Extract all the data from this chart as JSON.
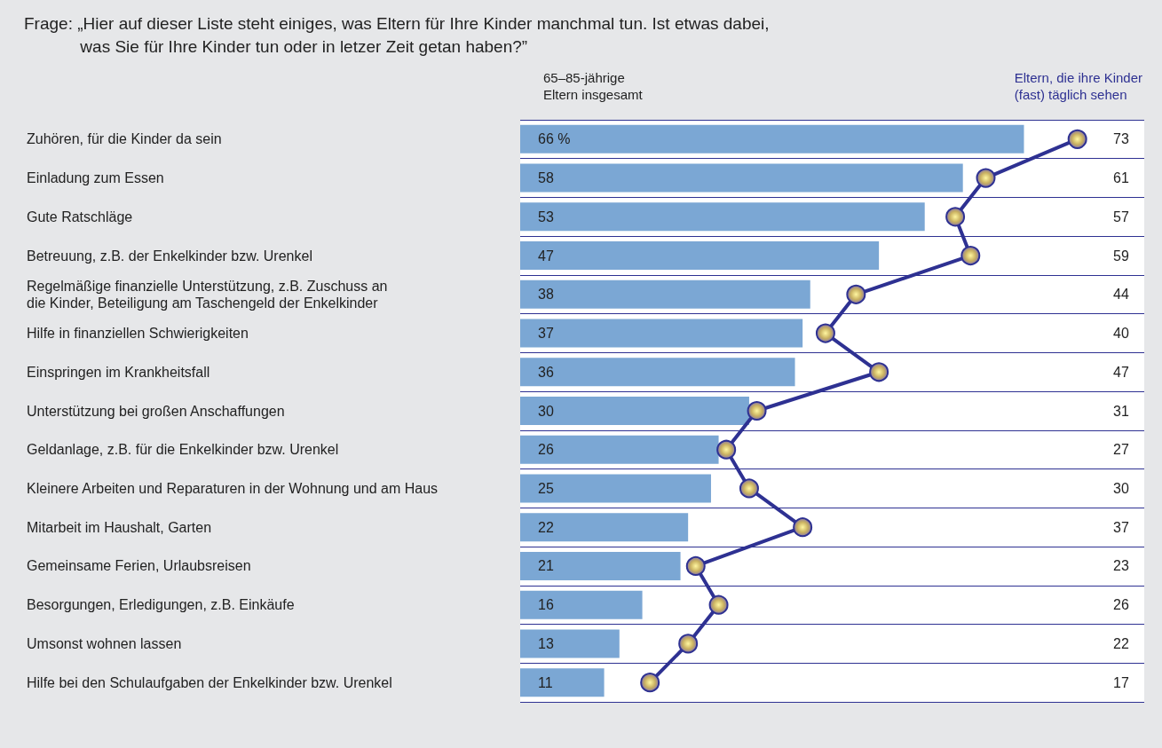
{
  "chart_data": {
    "type": "bar",
    "orientation": "horizontal",
    "title": "Frage: „Hier auf dieser Liste steht einiges, was Eltern für Ihre Kinder manchmal tun. Ist etwas dabei,\n            was Sie für Ihre Kinder tun oder in letzer Zeit getan haben?”",
    "categories": [
      "Zuhören, für die Kinder da sein",
      "Einladung zum Essen",
      "Gute Ratschläge",
      "Betreuung, z.B. der Enkelkinder bzw. Urenkel",
      "Regelmäßige finanzielle Unterstützung, z.B. Zuschuss an\ndie Kinder, Beteiligung am Taschengeld der Enkelkinder",
      "Hilfe in finanziellen Schwierigkeiten",
      "Einspringen im Krankheitsfall",
      "Unterstützung bei großen Anschaffungen",
      "Geldanlage, z.B. für die Enkelkinder bzw. Urenkel",
      "Kleinere Arbeiten und Reparaturen in der Wohnung und am Haus",
      "Mitarbeit im Haushalt, Garten",
      "Gemeinsame Ferien, Urlaubsreisen",
      "Besorgungen, Erledigungen, z.B. Einkäufe",
      "Umsonst wohnen lassen",
      "Hilfe bei den Schulaufgaben der Enkelkinder bzw. Urenkel"
    ],
    "series": [
      {
        "name": "65–85-jährige\nEltern insgesamt",
        "color": "#7ba7d4",
        "values": [
          66,
          58,
          53,
          47,
          38,
          37,
          36,
          30,
          26,
          25,
          22,
          21,
          16,
          13,
          11
        ],
        "value_labels": [
          "66 %",
          "58",
          "53",
          "47",
          "38",
          "37",
          "36",
          "30",
          "26",
          "25",
          "22",
          "21",
          "16",
          "13",
          "11"
        ]
      },
      {
        "name": "Eltern, die ihre Kinder\n(fast) täglich sehen",
        "type": "line",
        "color": "#2e3192",
        "values": [
          73,
          61,
          57,
          59,
          44,
          40,
          47,
          31,
          27,
          30,
          37,
          23,
          26,
          22,
          17
        ],
        "value_labels": [
          "73",
          "61",
          "57",
          "59",
          "44",
          "40",
          "47",
          "31",
          "27",
          "30",
          "37",
          "23",
          "26",
          "22",
          "17"
        ]
      }
    ],
    "marker": "circle",
    "grid": "y",
    "legend": false
  }
}
